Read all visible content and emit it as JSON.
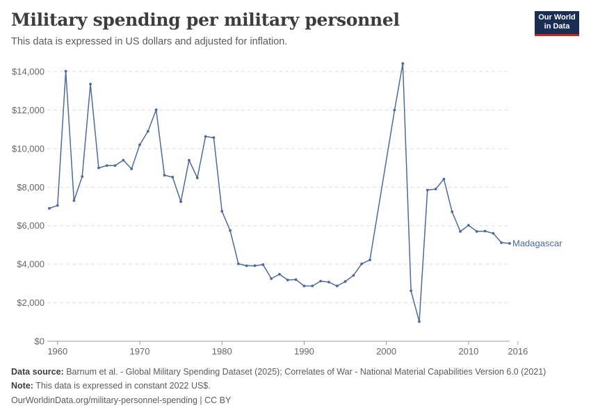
{
  "header": {
    "title": "Military spending per military personnel",
    "subtitle": "This data is expressed in US dollars and adjusted for inflation.",
    "logo_line1": "Our World",
    "logo_line2": "in Data"
  },
  "footer": {
    "source_label": "Data source:",
    "source_text": "Barnum et al. - Global Military Spending Dataset (2025); Correlates of War - National Material Capabilities Version 6.0 (2021)",
    "note_label": "Note:",
    "note_text": "This data is expressed in constant 2022 US$.",
    "url_text": "OurWorldinData.org/military-personnel-spending | CC BY"
  },
  "colors": {
    "series": "#4c6a9c",
    "grid": "#dddddd",
    "axis": "#666666"
  },
  "chart_data": {
    "type": "line",
    "title": "Military spending per military personnel",
    "xlim": [
      1960,
      2016
    ],
    "ylim": [
      0,
      14000
    ],
    "x_ticks": [
      1960,
      1970,
      1980,
      1990,
      2000,
      2010,
      2016
    ],
    "y_ticks": [
      0,
      2000,
      4000,
      6000,
      8000,
      10000,
      12000,
      14000
    ],
    "y_tick_labels": [
      "$0",
      "$2,000",
      "$4,000",
      "$6,000",
      "$8,000",
      "$10,000",
      "$12,000",
      "$14,000"
    ],
    "grid": "horizontal dashed",
    "series": [
      {
        "name": "Madagascar",
        "points": [
          [
            1959,
            6900
          ],
          [
            1960,
            7050
          ],
          [
            1961,
            14020
          ],
          [
            1962,
            7300
          ],
          [
            1963,
            8550
          ],
          [
            1964,
            13350
          ],
          [
            1965,
            9000
          ],
          [
            1966,
            9120
          ],
          [
            1967,
            9120
          ],
          [
            1968,
            9400
          ],
          [
            1969,
            8950
          ],
          [
            1970,
            10200
          ],
          [
            1971,
            10900
          ],
          [
            1972,
            12020
          ],
          [
            1973,
            8620
          ],
          [
            1974,
            8520
          ],
          [
            1975,
            7250
          ],
          [
            1976,
            9400
          ],
          [
            1977,
            8480
          ],
          [
            1978,
            10630
          ],
          [
            1979,
            10570
          ],
          [
            1980,
            6750
          ],
          [
            1981,
            5750
          ],
          [
            1982,
            4020
          ],
          [
            1983,
            3920
          ],
          [
            1984,
            3920
          ],
          [
            1985,
            3980
          ],
          [
            1986,
            3250
          ],
          [
            1987,
            3480
          ],
          [
            1988,
            3180
          ],
          [
            1989,
            3200
          ],
          [
            1990,
            2870
          ],
          [
            1991,
            2870
          ],
          [
            1992,
            3120
          ],
          [
            1993,
            3070
          ],
          [
            1994,
            2870
          ],
          [
            1995,
            3100
          ],
          [
            1996,
            3420
          ],
          [
            1997,
            4020
          ],
          [
            1998,
            4220
          ],
          [
            2001,
            12000
          ],
          [
            2002,
            14420
          ],
          [
            2003,
            2620
          ],
          [
            2004,
            1020
          ],
          [
            2005,
            7850
          ],
          [
            2006,
            7900
          ],
          [
            2007,
            8420
          ],
          [
            2008,
            6720
          ],
          [
            2009,
            5700
          ],
          [
            2010,
            6020
          ],
          [
            2011,
            5700
          ],
          [
            2012,
            5720
          ],
          [
            2013,
            5600
          ],
          [
            2014,
            5120
          ],
          [
            2015,
            5080
          ]
        ]
      }
    ]
  }
}
